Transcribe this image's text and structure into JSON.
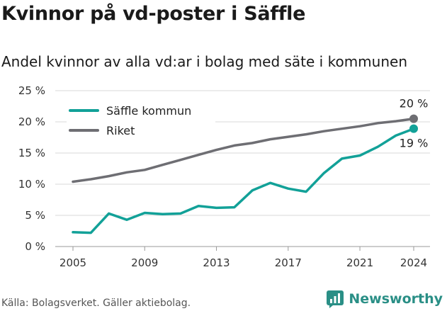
{
  "title": "Kvinnor på vd-poster i Säffle",
  "subtitle": "Andel kvinnor av alla vd:ar i bolag med säte i kommunen",
  "source": "Källa: Bolagsverket. Gäller aktiebolag.",
  "brand": "Newsworthy",
  "colors": {
    "saffle": "#12a198",
    "riket": "#6e6e73",
    "grid": "#d9d9d9",
    "brand": "#2a8f86"
  },
  "chart_data": {
    "type": "line",
    "x": [
      2005,
      2006,
      2007,
      2008,
      2009,
      2010,
      2011,
      2012,
      2013,
      2014,
      2015,
      2016,
      2017,
      2018,
      2019,
      2020,
      2021,
      2022,
      2023,
      2024
    ],
    "series": [
      {
        "name": "Säffle kommun",
        "color": "#12a198",
        "values": [
          2.3,
          2.2,
          5.3,
          4.3,
          5.4,
          5.2,
          5.3,
          6.5,
          6.2,
          6.3,
          9.0,
          10.2,
          9.3,
          8.8,
          11.8,
          14.1,
          14.6,
          16.0,
          17.8,
          18.9
        ],
        "end_label": "19 %"
      },
      {
        "name": "Riket",
        "color": "#6e6e73",
        "values": [
          10.4,
          10.8,
          11.3,
          11.9,
          12.3,
          13.1,
          13.9,
          14.7,
          15.5,
          16.2,
          16.6,
          17.2,
          17.6,
          18.0,
          18.5,
          18.9,
          19.3,
          19.8,
          20.1,
          20.5
        ],
        "end_label": "20 %"
      }
    ],
    "xticks": [
      2005,
      2009,
      2013,
      2017,
      2021,
      2024
    ],
    "yticks": [
      0,
      5,
      10,
      15,
      20,
      25
    ],
    "ytick_labels": [
      "0 %",
      "5 %",
      "10 %",
      "15 %",
      "20 %",
      "25 %"
    ],
    "ylim": [
      0,
      25
    ],
    "xlim": [
      2005,
      2024
    ],
    "grid": "horizontal",
    "legend": "top-left"
  }
}
